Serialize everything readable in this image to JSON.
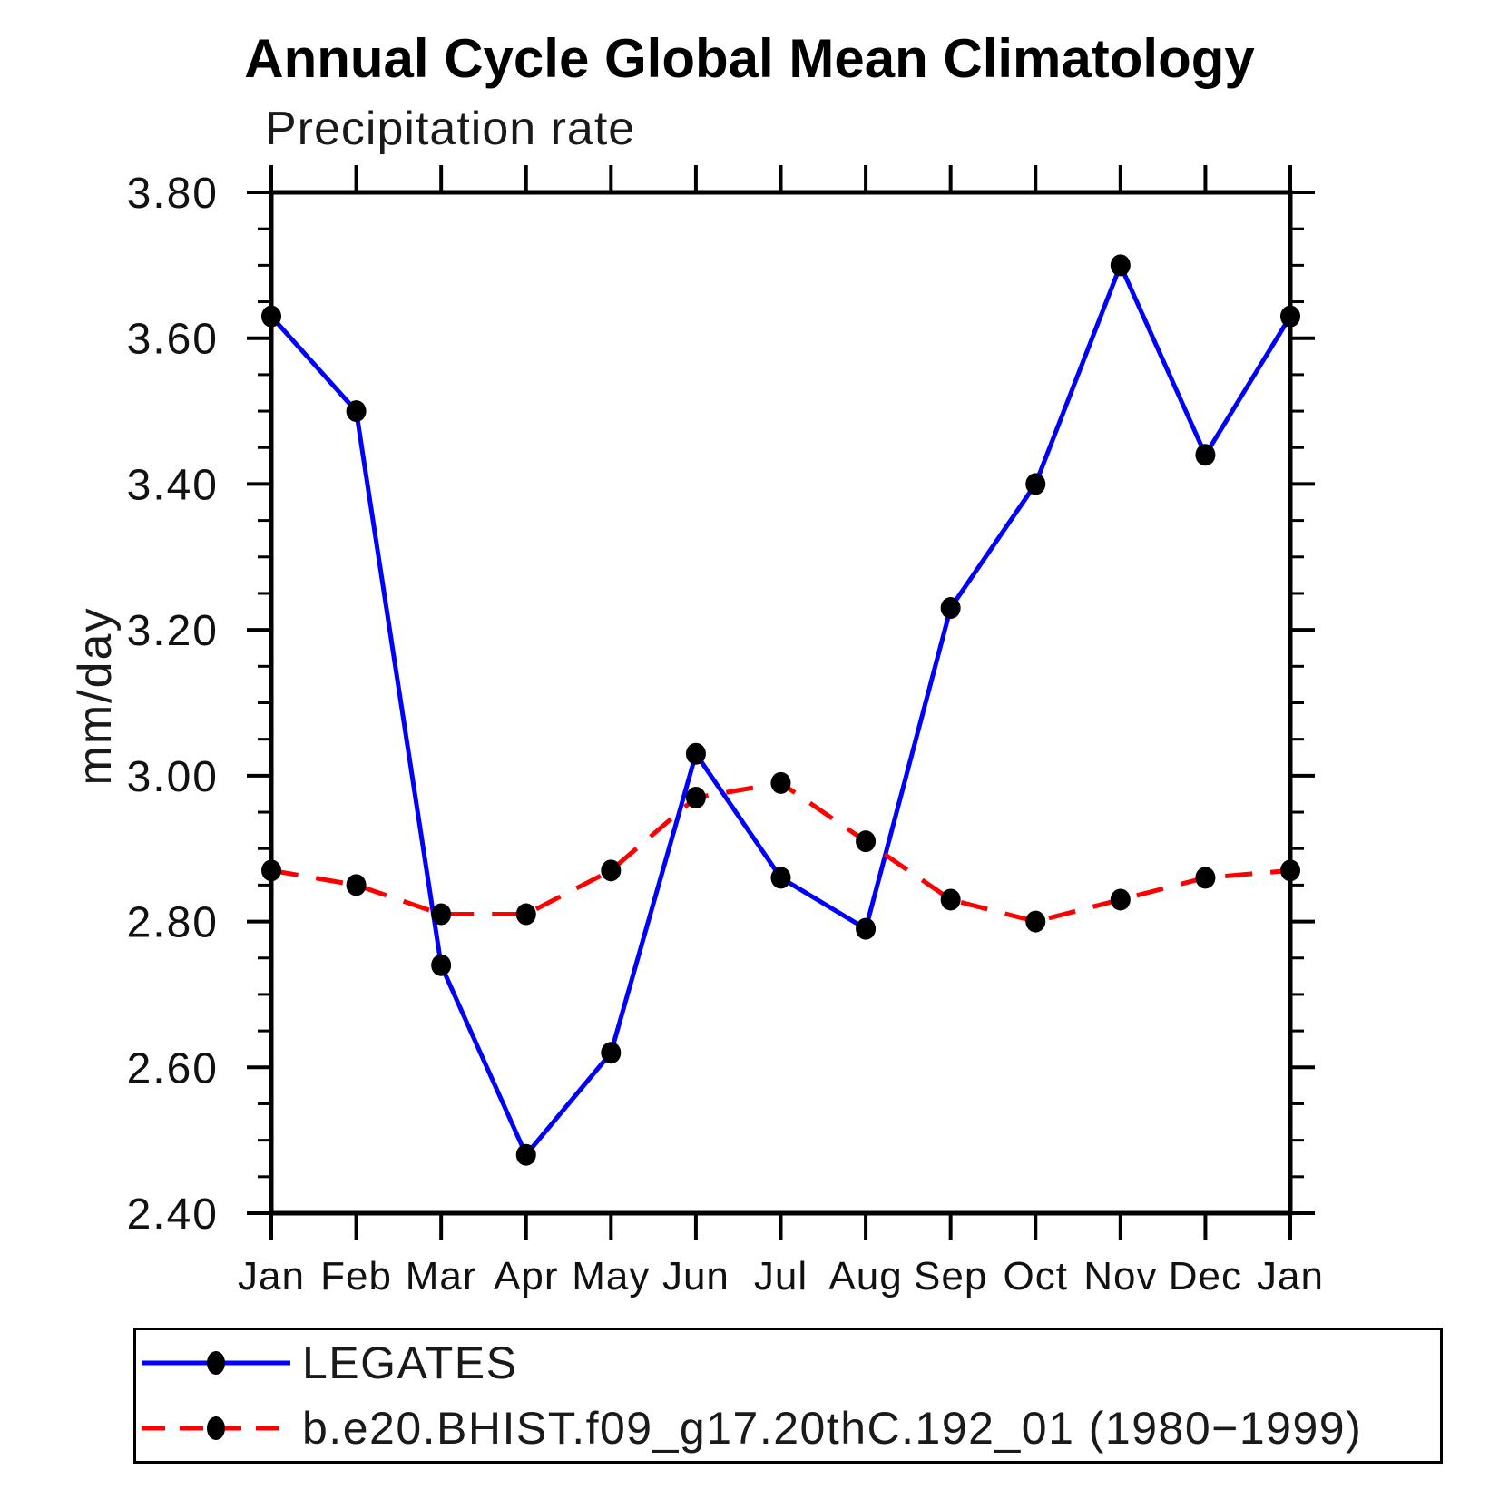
{
  "page": {
    "background": "#ffffff",
    "axis_color": "#000000"
  },
  "chart": {
    "title": "Annual Cycle Global Mean Climatology",
    "subtitle": "Precipitation rate",
    "ylabel": "mm/day"
  },
  "chart_data": {
    "type": "line",
    "title": "Annual Cycle Global Mean Climatology",
    "subtitle": "Precipitation rate",
    "xlabel": "",
    "ylabel": "mm/day",
    "x_categories": [
      "Jan",
      "Feb",
      "Mar",
      "Apr",
      "May",
      "Jun",
      "Jul",
      "Aug",
      "Sep",
      "Oct",
      "Nov",
      "Dec",
      "Jan"
    ],
    "ylim": [
      2.4,
      3.8
    ],
    "ytick_step": 0.2,
    "minor_tick_step": 0.05,
    "ytick_labels": [
      "2.40",
      "2.60",
      "2.80",
      "3.00",
      "3.20",
      "3.40",
      "3.60",
      "3.80"
    ],
    "grid": false,
    "legend_position": "bottom",
    "series": [
      {
        "name": "LEGATES",
        "color": "#0000ff",
        "line_style": "solid",
        "marker": "circle",
        "marker_color": "#000000",
        "values": [
          3.63,
          3.5,
          2.74,
          2.48,
          2.62,
          3.03,
          2.86,
          2.79,
          3.23,
          3.4,
          3.7,
          3.44,
          3.63
        ]
      },
      {
        "name": "b.e20.BHIST.f09_g17.20thC.192_01 (1980−1999)",
        "color": "#ff0000",
        "line_style": "dashed",
        "marker": "circle",
        "marker_color": "#000000",
        "values": [
          2.87,
          2.85,
          2.81,
          2.81,
          2.87,
          2.97,
          2.99,
          2.91,
          2.83,
          2.8,
          2.83,
          2.86,
          2.87
        ]
      }
    ]
  }
}
